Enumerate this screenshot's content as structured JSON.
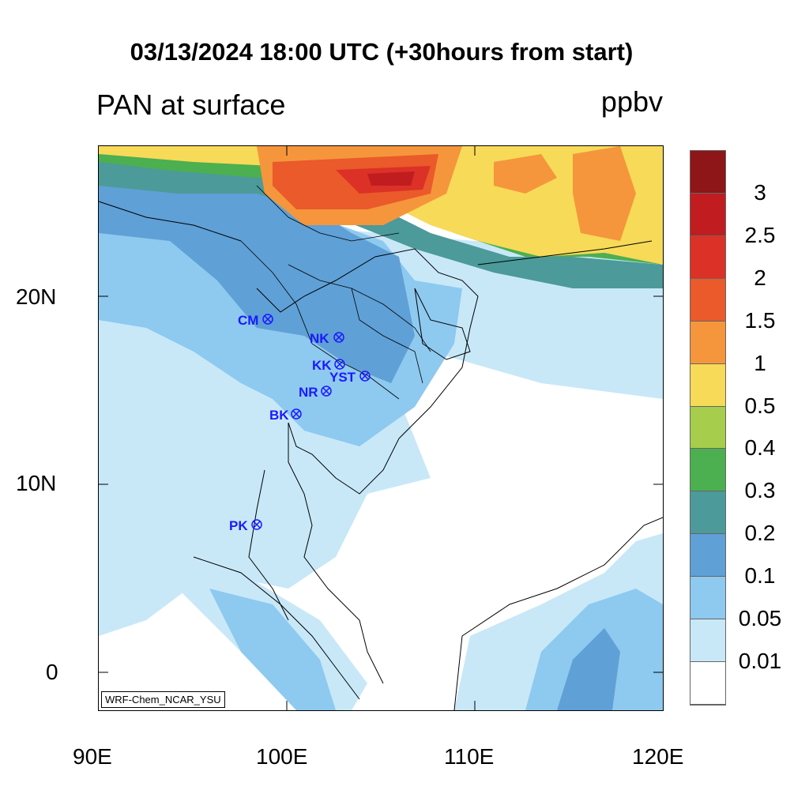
{
  "title": "03/13/2024 18:00 UTC (+30hours from start)",
  "left_subtitle": "PAN at surface",
  "right_subtitle": "ppbv",
  "credit": "WRF-Chem_NCAR_YSU",
  "x_ticks": [
    "90E",
    "100E",
    "110E",
    "120E"
  ],
  "y_ticks": [
    "20N",
    "10N",
    "0"
  ],
  "colorbar": {
    "levels": [
      "3",
      "2.5",
      "2",
      "1.5",
      "1",
      "0.5",
      "0.4",
      "0.3",
      "0.2",
      "0.1",
      "0.05",
      "0.01"
    ],
    "colors": [
      "#8e1518",
      "#c11d20",
      "#db3127",
      "#ea5a2a",
      "#f5963c",
      "#f7da58",
      "#a6cd4b",
      "#4caf50",
      "#4c9a9a",
      "#5fa0d6",
      "#8ec9ef",
      "#c8e8f8",
      "#ffffff"
    ]
  },
  "stations": [
    {
      "label": "CM"
    },
    {
      "label": "NK"
    },
    {
      "label": "KK"
    },
    {
      "label": "YST"
    },
    {
      "label": "NR"
    },
    {
      "label": "BK"
    },
    {
      "label": "PK"
    }
  ]
}
